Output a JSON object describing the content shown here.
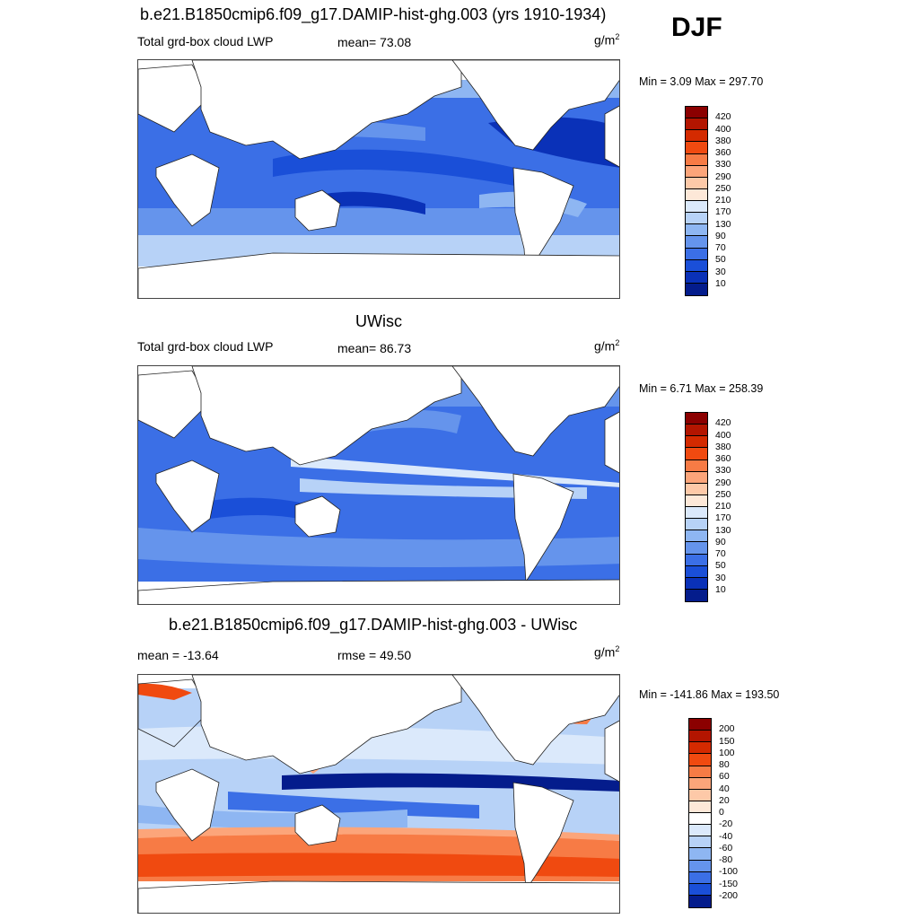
{
  "season": "DJF",
  "units_base": "g/m",
  "units_exp": "2",
  "panels": [
    {
      "title": "b.e21.B1850cmip6.f09_g17.DAMIP-hist-ghg.003 (yrs 1910-1934)",
      "left_label": "Total grd-box cloud LWP",
      "center_label": "mean=  73.08",
      "minmax": "Min =   3.09 Max = 297.70"
    },
    {
      "title": "UWisc",
      "left_label": "Total grd-box cloud LWP",
      "center_label": "mean=  86.73",
      "minmax": "Min =   6.71 Max = 258.39"
    },
    {
      "title": "b.e21.B1850cmip6.f09_g17.DAMIP-hist-ghg.003 - UWisc",
      "left_label": "mean = -13.64",
      "center_label": "rmse =  49.50",
      "minmax": "Min = -141.86 Max = 193.50"
    }
  ],
  "colorbars": {
    "lwp": {
      "labels": [
        "420",
        "400",
        "380",
        "360",
        "330",
        "290",
        "250",
        "210",
        "170",
        "130",
        "90",
        "70",
        "50",
        "30",
        "10"
      ],
      "colors": [
        "#8b0000",
        "#b31500",
        "#d42a00",
        "#f04a10",
        "#f77b45",
        "#fca57a",
        "#fdc9a8",
        "#fde8d8",
        "#dbe9fb",
        "#b7d2f7",
        "#8eb6f2",
        "#6594ec",
        "#3b6fe6",
        "#1a4fd8",
        "#0a31b8",
        "#041c8c"
      ]
    },
    "diff": {
      "labels": [
        "200",
        "150",
        "100",
        "80",
        "60",
        "40",
        "20",
        "0",
        "-20",
        "-40",
        "-60",
        "-80",
        "-100",
        "-150",
        "-200"
      ],
      "colors": [
        "#8b0000",
        "#b31500",
        "#d42a00",
        "#f04a10",
        "#f77b45",
        "#fca57a",
        "#fdc9a8",
        "#fde8d8",
        "#ffffff",
        "#dbe9fb",
        "#b7d2f7",
        "#8eb6f2",
        "#6594ec",
        "#3b6fe6",
        "#1a4fd8",
        "#041c8c"
      ]
    }
  }
}
